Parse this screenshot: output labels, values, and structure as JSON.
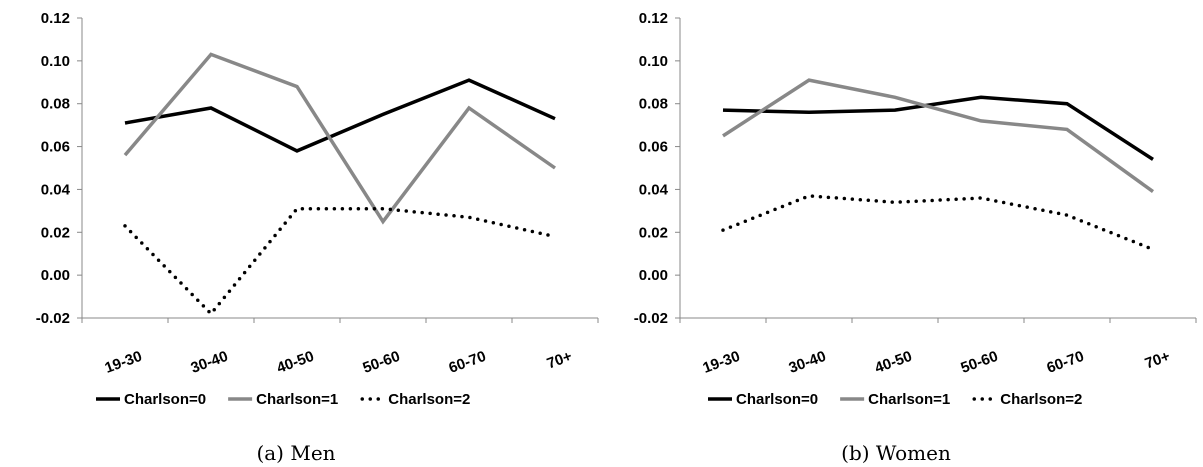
{
  "chart_data": [
    {
      "type": "line",
      "title": "",
      "caption": "(a) Men",
      "xlabel": "",
      "ylabel": "",
      "categories": [
        "19-30",
        "30-40",
        "40-50",
        "50-60",
        "60-70",
        "70+"
      ],
      "ylim": [
        -0.02,
        0.12
      ],
      "yticks": [
        "-0.02",
        "0.00",
        "0.02",
        "0.04",
        "0.06",
        "0.08",
        "0.10",
        "0.12"
      ],
      "grid": false,
      "legend_position": "bottom",
      "series": [
        {
          "name": "Charlson=0",
          "values": [
            0.071,
            0.078,
            0.058,
            0.075,
            0.091,
            0.073
          ],
          "color": "#000000",
          "style": "solid"
        },
        {
          "name": "Charlson=1",
          "values": [
            0.056,
            0.103,
            0.088,
            0.025,
            0.078,
            0.05
          ],
          "color": "#888888",
          "style": "solid"
        },
        {
          "name": "Charlson=2",
          "values": [
            0.023,
            -0.018,
            0.031,
            0.031,
            0.027,
            0.018
          ],
          "color": "#000000",
          "style": "dotted"
        }
      ]
    },
    {
      "type": "line",
      "title": "",
      "caption": "(b) Women",
      "xlabel": "",
      "ylabel": "",
      "categories": [
        "19-30",
        "30-40",
        "40-50",
        "50-60",
        "60-70",
        "70+"
      ],
      "ylim": [
        -0.02,
        0.12
      ],
      "yticks": [
        "-0.02",
        "0.00",
        "0.02",
        "0.04",
        "0.06",
        "0.08",
        "0.10",
        "0.12"
      ],
      "grid": false,
      "legend_position": "bottom",
      "series": [
        {
          "name": "Charlson=0",
          "values": [
            0.077,
            0.076,
            0.077,
            0.083,
            0.08,
            0.054
          ],
          "color": "#000000",
          "style": "solid"
        },
        {
          "name": "Charlson=1",
          "values": [
            0.065,
            0.091,
            0.083,
            0.072,
            0.068,
            0.039
          ],
          "color": "#888888",
          "style": "solid"
        },
        {
          "name": "Charlson=2",
          "values": [
            0.021,
            0.037,
            0.034,
            0.036,
            0.028,
            0.012
          ],
          "color": "#000000",
          "style": "dotted"
        }
      ]
    }
  ]
}
